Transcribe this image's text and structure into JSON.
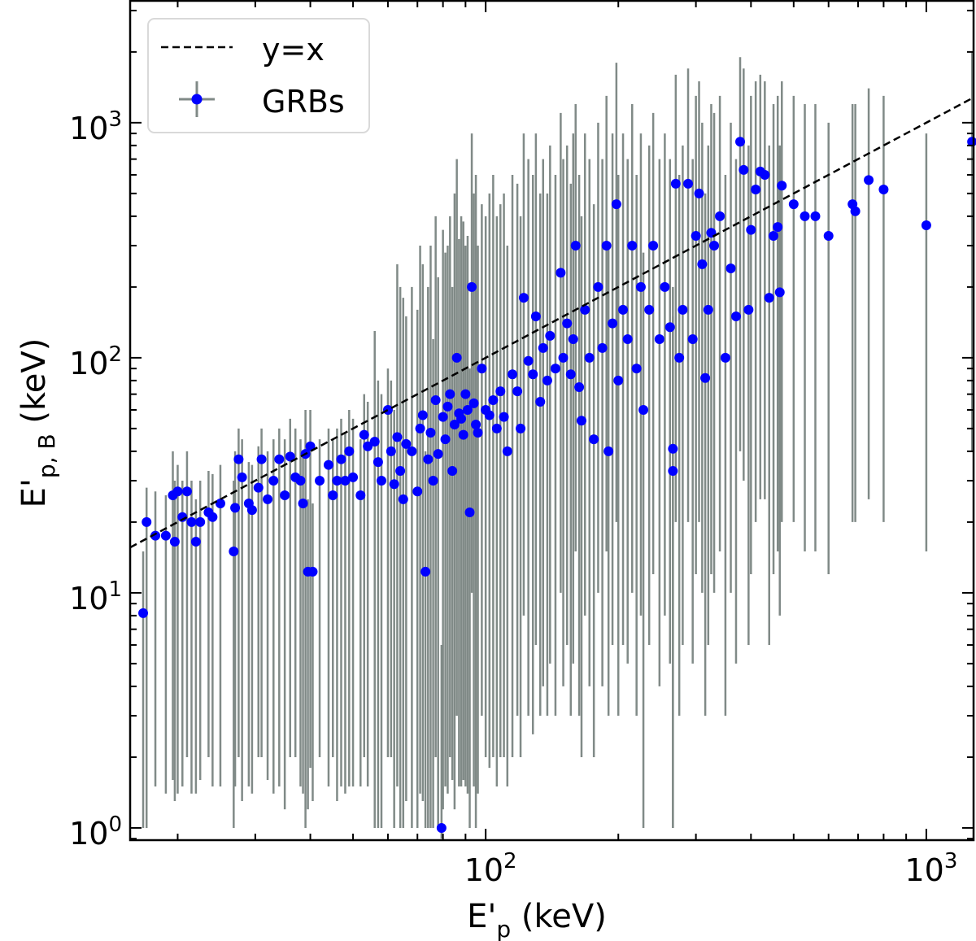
{
  "chart_data": {
    "type": "scatter",
    "xlabel": "E'p (keV)",
    "xlabel_main": "E'",
    "xlabel_sub": "p",
    "xlabel_unit": " (keV)",
    "ylabel_main": "E'",
    "ylabel_sub": "p, B",
    "ylabel_unit": " (keV)",
    "xscale": "log",
    "yscale": "log",
    "xlim": [
      15.6,
      1280
    ],
    "ylim": [
      0.887,
      3300
    ],
    "xticks": [
      {
        "value": 100,
        "base": "10",
        "exp": "2"
      },
      {
        "value": 1000,
        "base": "10",
        "exp": "3"
      }
    ],
    "yticks": [
      {
        "value": 1,
        "base": "10",
        "exp": "0"
      },
      {
        "value": 10,
        "base": "10",
        "exp": "1"
      },
      {
        "value": 100,
        "base": "10",
        "exp": "2"
      },
      {
        "value": 1000,
        "base": "10",
        "exp": "3"
      }
    ],
    "grid": false,
    "legend": {
      "placement": "top-left",
      "entries": [
        "y=x",
        "GRBs"
      ]
    },
    "colors": {
      "points": "#0000ff",
      "errorbars": "#808a87",
      "line": "#000000"
    },
    "line": {
      "name": "y=x",
      "style": "dashed",
      "x": [
        15.6,
        1280
      ],
      "y": [
        15.6,
        1280
      ]
    },
    "series": [
      {
        "name": "GRBs",
        "points_x_y_ylo_yhi": [
          [
            16.7,
            8.2,
            1,
            15
          ],
          [
            17,
            20,
            1,
            28
          ],
          [
            17.8,
            17.5,
            1.5,
            27
          ],
          [
            18.8,
            17.5,
            1.4,
            26
          ],
          [
            19.5,
            26,
            1.6,
            40
          ],
          [
            19.7,
            16.5,
            1.3,
            30
          ],
          [
            20,
            27,
            1.4,
            35
          ],
          [
            20.5,
            21,
            1.5,
            30
          ],
          [
            21,
            27,
            2,
            40
          ],
          [
            21.5,
            20,
            1.4,
            30
          ],
          [
            22,
            16.5,
            1.4,
            25
          ],
          [
            22.5,
            20,
            1.6,
            30
          ],
          [
            23.5,
            22,
            2,
            33
          ],
          [
            24,
            21,
            1.5,
            32
          ],
          [
            25,
            24,
            1.5,
            35
          ],
          [
            26.8,
            15,
            1,
            30
          ],
          [
            27,
            23,
            1.5,
            40
          ],
          [
            27.5,
            37,
            2,
            50
          ],
          [
            28,
            31,
            1.3,
            45
          ],
          [
            29,
            24,
            1.5,
            36
          ],
          [
            29.5,
            22.5,
            1.4,
            35
          ],
          [
            30.5,
            28,
            2,
            42
          ],
          [
            31,
            37,
            2,
            50
          ],
          [
            32,
            25,
            1.6,
            40
          ],
          [
            33,
            30,
            1.4,
            45
          ],
          [
            34,
            37,
            1.5,
            50
          ],
          [
            35,
            26,
            1.2,
            45
          ],
          [
            36,
            38,
            2,
            55
          ],
          [
            37,
            31,
            2,
            50
          ],
          [
            38,
            30,
            1.5,
            45
          ],
          [
            38.5,
            24,
            1.4,
            40
          ],
          [
            39,
            39,
            1,
            60
          ],
          [
            39.5,
            12.3,
            1.2,
            25
          ],
          [
            40.5,
            12.3,
            1.3,
            24
          ],
          [
            40,
            42,
            1.8,
            60
          ],
          [
            42,
            30,
            2,
            45
          ],
          [
            44,
            35,
            1.5,
            50
          ],
          [
            45,
            26,
            2,
            45
          ],
          [
            46,
            30,
            1.3,
            50
          ],
          [
            47,
            37,
            1.5,
            55
          ],
          [
            48,
            30,
            1.4,
            48
          ],
          [
            49,
            40,
            1.5,
            60
          ],
          [
            50,
            31,
            1.5,
            55
          ],
          [
            52,
            26,
            1.5,
            45
          ],
          [
            53,
            47,
            2,
            70
          ],
          [
            54,
            42,
            1.5,
            65
          ],
          [
            56,
            44,
            1,
            130
          ],
          [
            57,
            36,
            1,
            80
          ],
          [
            58,
            30,
            1,
            70
          ],
          [
            60,
            60,
            2,
            90
          ],
          [
            61,
            40,
            2,
            80
          ],
          [
            62,
            29,
            1,
            60
          ],
          [
            63,
            46,
            1.5,
            250
          ],
          [
            64,
            33,
            1,
            200
          ],
          [
            65,
            25,
            1,
            180
          ],
          [
            66,
            43,
            1.3,
            150
          ],
          [
            68,
            40,
            1,
            200
          ],
          [
            70,
            27,
            1,
            160
          ],
          [
            71,
            50,
            1.4,
            300
          ],
          [
            72,
            57,
            1.3,
            250
          ],
          [
            73,
            12.3,
            1,
            40
          ],
          [
            74,
            37,
            1,
            200
          ],
          [
            75,
            48,
            1,
            300
          ],
          [
            76,
            30,
            1,
            120
          ],
          [
            77,
            66,
            2,
            400
          ],
          [
            78,
            39,
            1,
            220
          ],
          [
            79.4,
            1,
            0.9,
            6
          ],
          [
            80,
            56,
            1.2,
            350
          ],
          [
            81,
            45,
            1.5,
            280
          ],
          [
            82,
            62,
            1.4,
            300
          ],
          [
            83,
            70,
            2,
            400
          ],
          [
            84,
            33,
            1.6,
            200
          ],
          [
            85,
            52,
            1.2,
            500
          ],
          [
            86,
            100,
            3,
            700
          ],
          [
            87,
            58,
            1.5,
            320
          ],
          [
            88,
            55,
            1.5,
            400
          ],
          [
            89,
            47,
            1.6,
            380
          ],
          [
            90,
            70,
            1.5,
            300
          ],
          [
            91,
            60,
            1.4,
            330
          ],
          [
            92,
            22,
            1,
            90
          ],
          [
            93,
            200,
            10,
            900
          ],
          [
            94,
            64,
            1.5,
            500
          ],
          [
            95,
            52,
            1,
            600
          ],
          [
            96,
            48,
            1.4,
            300
          ],
          [
            98,
            90,
            3,
            450
          ],
          [
            100,
            60,
            2,
            400
          ],
          [
            102,
            57,
            1.8,
            500
          ],
          [
            104,
            66,
            2,
            600
          ],
          [
            106,
            50,
            1.5,
            400
          ],
          [
            108,
            72,
            2,
            450
          ],
          [
            110,
            56,
            2,
            500
          ],
          [
            112,
            40,
            1.5,
            300
          ],
          [
            115,
            85,
            2,
            600
          ],
          [
            118,
            72,
            3,
            550
          ],
          [
            120,
            50,
            2,
            400
          ],
          [
            122,
            180,
            8,
            900
          ],
          [
            125,
            97,
            3,
            700
          ],
          [
            128,
            85,
            2.5,
            600
          ],
          [
            130,
            150,
            6,
            900
          ],
          [
            133,
            65,
            3,
            500
          ],
          [
            135,
            110,
            4,
            700
          ],
          [
            138,
            80,
            3,
            500
          ],
          [
            140,
            124,
            5,
            800
          ],
          [
            144,
            90,
            3,
            600
          ],
          [
            148,
            230,
            10,
            1100
          ],
          [
            150,
            100,
            4,
            700
          ],
          [
            153,
            140,
            6,
            800
          ],
          [
            156,
            85,
            3,
            550
          ],
          [
            158,
            120,
            5,
            900
          ],
          [
            160,
            300,
            15,
            1200
          ],
          [
            163,
            75,
            3,
            600
          ],
          [
            165,
            54,
            2,
            400
          ],
          [
            168,
            160,
            8,
            900
          ],
          [
            172,
            100,
            4,
            700
          ],
          [
            176,
            45,
            2,
            450
          ],
          [
            180,
            200,
            10,
            1000
          ],
          [
            184,
            110,
            4,
            700
          ],
          [
            188,
            300,
            15,
            1300
          ],
          [
            190,
            40,
            3,
            300
          ],
          [
            194,
            140,
            6,
            900
          ],
          [
            198,
            450,
            20,
            1800
          ],
          [
            200,
            80,
            3,
            600
          ],
          [
            205,
            160,
            6,
            900
          ],
          [
            210,
            120,
            5,
            700
          ],
          [
            215,
            300,
            10,
            1200
          ],
          [
            220,
            90,
            3,
            600
          ],
          [
            225,
            200,
            8,
            900
          ],
          [
            228,
            60,
            1,
            280
          ],
          [
            235,
            160,
            6,
            800
          ],
          [
            240,
            300,
            12,
            1100
          ],
          [
            248,
            120,
            4,
            700
          ],
          [
            255,
            200,
            8,
            900
          ],
          [
            262,
            135,
            5,
            700
          ],
          [
            266,
            41,
            1,
            200
          ],
          [
            266,
            33,
            1,
            150
          ],
          [
            270,
            550,
            20,
            1600
          ],
          [
            275,
            100,
            3,
            600
          ],
          [
            280,
            160,
            6,
            800
          ],
          [
            288,
            550,
            20,
            1700
          ],
          [
            295,
            120,
            5,
            700
          ],
          [
            300,
            330,
            12,
            1300
          ],
          [
            305,
            500,
            20,
            1500
          ],
          [
            310,
            250,
            10,
            1000
          ],
          [
            315,
            82,
            3,
            500
          ],
          [
            320,
            160,
            6,
            800
          ],
          [
            325,
            340,
            12,
            1200
          ],
          [
            330,
            300,
            10,
            1100
          ],
          [
            340,
            400,
            15,
            1300
          ],
          [
            350,
            100,
            3,
            600
          ],
          [
            360,
            240,
            10,
            1000
          ],
          [
            370,
            150,
            5,
            700
          ],
          [
            378,
            830,
            40,
            1900
          ],
          [
            385,
            630,
            30,
            1700
          ],
          [
            395,
            160,
            6,
            800
          ],
          [
            400,
            350,
            12,
            1300
          ],
          [
            410,
            520,
            20,
            1500
          ],
          [
            420,
            620,
            25,
            1600
          ],
          [
            430,
            600,
            25,
            1500
          ],
          [
            440,
            180,
            6,
            800
          ],
          [
            450,
            330,
            12,
            1200
          ],
          [
            460,
            360,
            15,
            1300
          ],
          [
            465,
            190,
            8,
            800
          ],
          [
            470,
            540,
            20,
            1500
          ],
          [
            500,
            450,
            20,
            1300
          ],
          [
            530,
            400,
            15,
            1200
          ],
          [
            560,
            400,
            15,
            1200
          ],
          [
            600,
            330,
            12,
            1000
          ],
          [
            680,
            450,
            20,
            1200
          ],
          [
            690,
            420,
            20,
            1200
          ],
          [
            740,
            570,
            25,
            1400
          ],
          [
            800,
            520,
            20,
            1300
          ],
          [
            1000,
            366,
            15,
            900
          ],
          [
            1270,
            830,
            40,
            2000
          ]
        ]
      }
    ]
  }
}
